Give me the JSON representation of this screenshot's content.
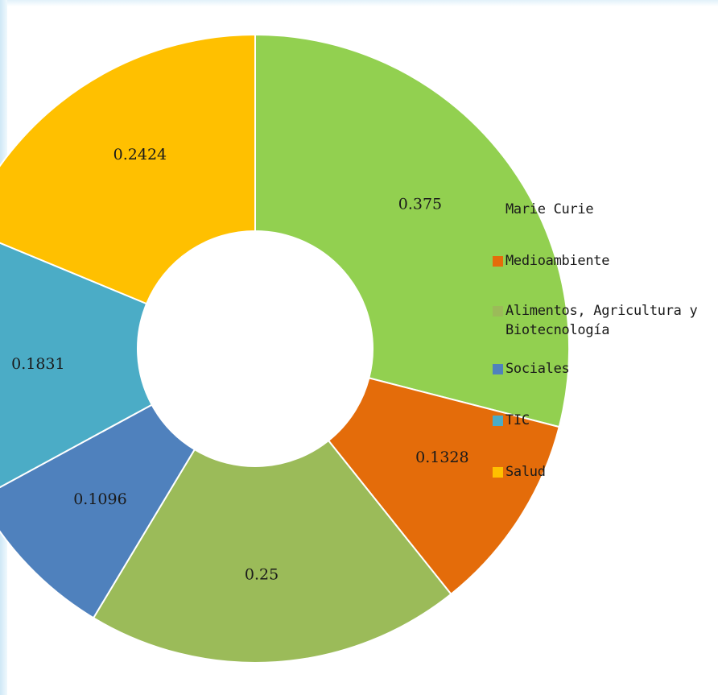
{
  "chart_data": {
    "type": "pie",
    "donut": true,
    "title": "",
    "legend_position": "right",
    "slices": [
      {
        "label": "Marie Curie",
        "value": 0.375,
        "value_label": "0.375",
        "color": "#92D050"
      },
      {
        "label": "Medioambiente",
        "value": 0.1328,
        "value_label": "0.1328",
        "color": "#E46C0A"
      },
      {
        "label": "Alimentos, Agricultura y Biotecnología",
        "value": 0.25,
        "value_label": "0.25",
        "color": "#9BBB59"
      },
      {
        "label": "Sociales",
        "value": 0.1096,
        "value_label": "0.1096",
        "color": "#4F81BD"
      },
      {
        "label": "TIC",
        "value": 0.1831,
        "value_label": "0.1831",
        "color": "#4BACC6"
      },
      {
        "label": "Salud",
        "value": 0.2424,
        "value_label": "0.2424",
        "color": "#FFC000"
      }
    ]
  }
}
